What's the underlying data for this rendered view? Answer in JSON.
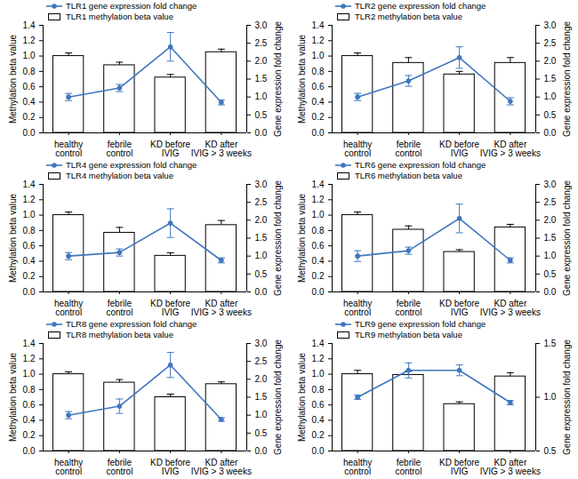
{
  "chart_data": [
    {
      "type": "bar",
      "legend": "top-left",
      "categories": [
        "healthy control",
        "febrile control",
        "KD before IVIG",
        "KD after IVIG > 3 weeks"
      ],
      "ylabel": "Methylation beta value",
      "y2label": "Gene expression fold change",
      "ylim": [
        0,
        1.4
      ],
      "yticks": [
        {
          "value": 0,
          "label": "0.0"
        },
        0.2,
        0.4,
        0.6,
        0.8,
        {
          "value": 1,
          "label": "1.0"
        },
        1.2,
        1.4
      ],
      "y2lim": [
        0,
        3
      ],
      "y2ticks": [
        {
          "value": 0,
          "label": "0.0"
        },
        0.5,
        {
          "value": 1,
          "label": "1.0"
        },
        1.5,
        {
          "value": 2,
          "label": "2.0"
        },
        2.5,
        {
          "value": 3,
          "label": "3.0"
        }
      ],
      "series": [
        {
          "name": "TLR1 gene expression fold change",
          "type": "line",
          "axis": "y2",
          "color": "#3f76bf",
          "marker": "circle",
          "values": [
            1.0,
            1.25,
            2.4,
            0.85
          ],
          "errors": [
            0.1,
            0.1,
            0.4,
            0.07
          ]
        },
        {
          "name": "TLR1 methylation beta value",
          "type": "bar",
          "color": "#ffffff",
          "values": [
            1.0,
            0.88,
            0.72,
            1.05
          ],
          "errors": [
            0.04,
            0.04,
            0.04,
            0.04
          ]
        }
      ]
    },
    {
      "type": "bar",
      "legend": "top-left",
      "categories": [
        "healthy control",
        "febrile control",
        "KD before IVIG",
        "KD after IVIG > 3 weeks"
      ],
      "ylabel": "Methylation beta value",
      "y2label": "Gene expression fold change",
      "ylim": [
        0,
        1.4
      ],
      "yticks": [
        {
          "value": 0,
          "label": "0.0"
        },
        0.2,
        0.4,
        0.6,
        0.8,
        {
          "value": 1,
          "label": "1.0"
        },
        1.2,
        1.4
      ],
      "y2lim": [
        0,
        3
      ],
      "y2ticks": [
        {
          "value": 0,
          "label": "0.0"
        },
        0.5,
        {
          "value": 1,
          "label": "1.0"
        },
        1.5,
        {
          "value": 2,
          "label": "2.0"
        },
        2.5,
        {
          "value": 3,
          "label": "3.0"
        }
      ],
      "series": [
        {
          "name": "TLR2 gene expression fold change",
          "type": "line",
          "axis": "y2",
          "color": "#3f76bf",
          "marker": "circle",
          "values": [
            1.0,
            1.45,
            2.1,
            0.88
          ],
          "errors": [
            0.1,
            0.15,
            0.3,
            0.1
          ]
        },
        {
          "name": "TLR2 methylation beta value",
          "type": "bar",
          "color": "#ffffff",
          "values": [
            1.0,
            0.91,
            0.76,
            0.91
          ],
          "errors": [
            0.04,
            0.07,
            0.04,
            0.07
          ]
        }
      ]
    },
    {
      "type": "bar",
      "legend": "top-left",
      "categories": [
        "healthy control",
        "febrile control",
        "KD before IVIG",
        "KD after IVIG > 3 weeks"
      ],
      "ylabel": "Methylation beta value",
      "y2label": "Gene expression fold change",
      "ylim": [
        0,
        1.4
      ],
      "yticks": [
        {
          "value": 0,
          "label": "0.0"
        },
        0.2,
        0.4,
        0.6,
        0.8,
        {
          "value": 1,
          "label": "1.0"
        },
        1.2,
        1.4
      ],
      "y2lim": [
        0,
        3
      ],
      "y2ticks": [
        {
          "value": 0,
          "label": "0.0"
        },
        0.5,
        {
          "value": 1,
          "label": "1.0"
        },
        1.5,
        {
          "value": 2,
          "label": "2.0"
        },
        2.5,
        {
          "value": 3,
          "label": "3.0"
        }
      ],
      "series": [
        {
          "name": "TLR4 gene expression fold change",
          "type": "line",
          "axis": "y2",
          "color": "#3f76bf",
          "marker": "circle",
          "values": [
            1.0,
            1.1,
            1.92,
            0.88
          ],
          "errors": [
            0.1,
            0.1,
            0.4,
            0.07
          ]
        },
        {
          "name": "TLR4 methylation beta value",
          "type": "bar",
          "color": "#ffffff",
          "values": [
            1.0,
            0.77,
            0.47,
            0.87
          ],
          "errors": [
            0.04,
            0.07,
            0.04,
            0.06
          ]
        }
      ]
    },
    {
      "type": "bar",
      "legend": "top-left",
      "categories": [
        "healthy control",
        "febrile control",
        "KD before IVIG",
        "KD after IVIG > 3 weeks"
      ],
      "ylabel": "Methylation beta value",
      "y2label": "Gene expression fold change",
      "ylim": [
        0,
        1.4
      ],
      "yticks": [
        {
          "value": 0,
          "label": "0.0"
        },
        0.2,
        0.4,
        0.6,
        0.8,
        {
          "value": 1,
          "label": "1.0"
        },
        1.2,
        1.4
      ],
      "y2lim": [
        0,
        3
      ],
      "y2ticks": [
        {
          "value": 0,
          "label": "0.0"
        },
        0.5,
        {
          "value": 1,
          "label": "1.0"
        },
        1.5,
        {
          "value": 2,
          "label": "2.0"
        },
        2.5,
        {
          "value": 3,
          "label": "3.0"
        }
      ],
      "series": [
        {
          "name": "TLR6 gene expression fold change",
          "type": "line",
          "axis": "y2",
          "color": "#3f76bf",
          "marker": "circle",
          "values": [
            1.0,
            1.15,
            2.05,
            0.88
          ],
          "errors": [
            0.15,
            0.1,
            0.4,
            0.07
          ]
        },
        {
          "name": "TLR6 methylation beta value",
          "type": "bar",
          "color": "#ffffff",
          "values": [
            1.0,
            0.81,
            0.52,
            0.84
          ],
          "errors": [
            0.04,
            0.05,
            0.03,
            0.04
          ]
        }
      ]
    },
    {
      "type": "bar",
      "legend": "top-left",
      "categories": [
        "healthy control",
        "febrile control",
        "KD before IVIG",
        "KD after IVIG > 3 weeks"
      ],
      "ylabel": "Methylation beta value",
      "y2label": "Gene expression fold change",
      "ylim": [
        0,
        1.4
      ],
      "yticks": [
        {
          "value": 0,
          "label": "0.0"
        },
        0.2,
        0.4,
        0.6,
        0.8,
        {
          "value": 1,
          "label": "1.0"
        },
        1.2,
        1.4
      ],
      "y2lim": [
        0,
        3
      ],
      "y2ticks": [
        {
          "value": 0,
          "label": "0.0"
        },
        0.5,
        {
          "value": 1,
          "label": "1.0"
        },
        1.5,
        {
          "value": 2,
          "label": "2.0"
        },
        2.5,
        {
          "value": 3,
          "label": "3.0"
        }
      ],
      "series": [
        {
          "name": "TLR8 gene expression fold change",
          "type": "line",
          "axis": "y2",
          "color": "#3f76bf",
          "marker": "circle",
          "values": [
            1.0,
            1.25,
            2.4,
            0.88
          ],
          "errors": [
            0.1,
            0.2,
            0.35,
            0.05
          ]
        },
        {
          "name": "TLR8 methylation beta value",
          "type": "bar",
          "color": "#ffffff",
          "values": [
            1.0,
            0.89,
            0.7,
            0.87
          ],
          "errors": [
            0.03,
            0.04,
            0.04,
            0.03
          ]
        }
      ]
    },
    {
      "type": "bar",
      "legend": "top-left",
      "categories": [
        "healthy control",
        "febrile control",
        "KD before IVIG",
        "KD after IVIG > 3 weeks"
      ],
      "ylabel": "Methylation beta value",
      "y2label": "Gene expression fold change",
      "ylim": [
        0,
        1.4
      ],
      "yticks": [
        {
          "value": 0,
          "label": "0.0"
        },
        0.2,
        0.4,
        0.6,
        0.8,
        {
          "value": 1,
          "label": "1.0"
        },
        1.2,
        1.4
      ],
      "y2lim": [
        0.5,
        1.5
      ],
      "y2ticks": [
        0.5,
        {
          "value": 1,
          "label": "1.0"
        },
        1.5
      ],
      "series": [
        {
          "name": "TLR9 gene expression fold change",
          "type": "line",
          "axis": "y2",
          "color": "#3f76bf",
          "marker": "circle",
          "values": [
            1.0,
            1.25,
            1.25,
            0.95
          ],
          "errors": [
            0.02,
            0.07,
            0.05,
            0.02
          ]
        },
        {
          "name": "TLR9 methylation beta value",
          "type": "bar",
          "color": "#ffffff",
          "values": [
            1.0,
            0.99,
            0.61,
            0.97
          ],
          "errors": [
            0.05,
            0.05,
            0.03,
            0.05
          ]
        }
      ]
    }
  ]
}
